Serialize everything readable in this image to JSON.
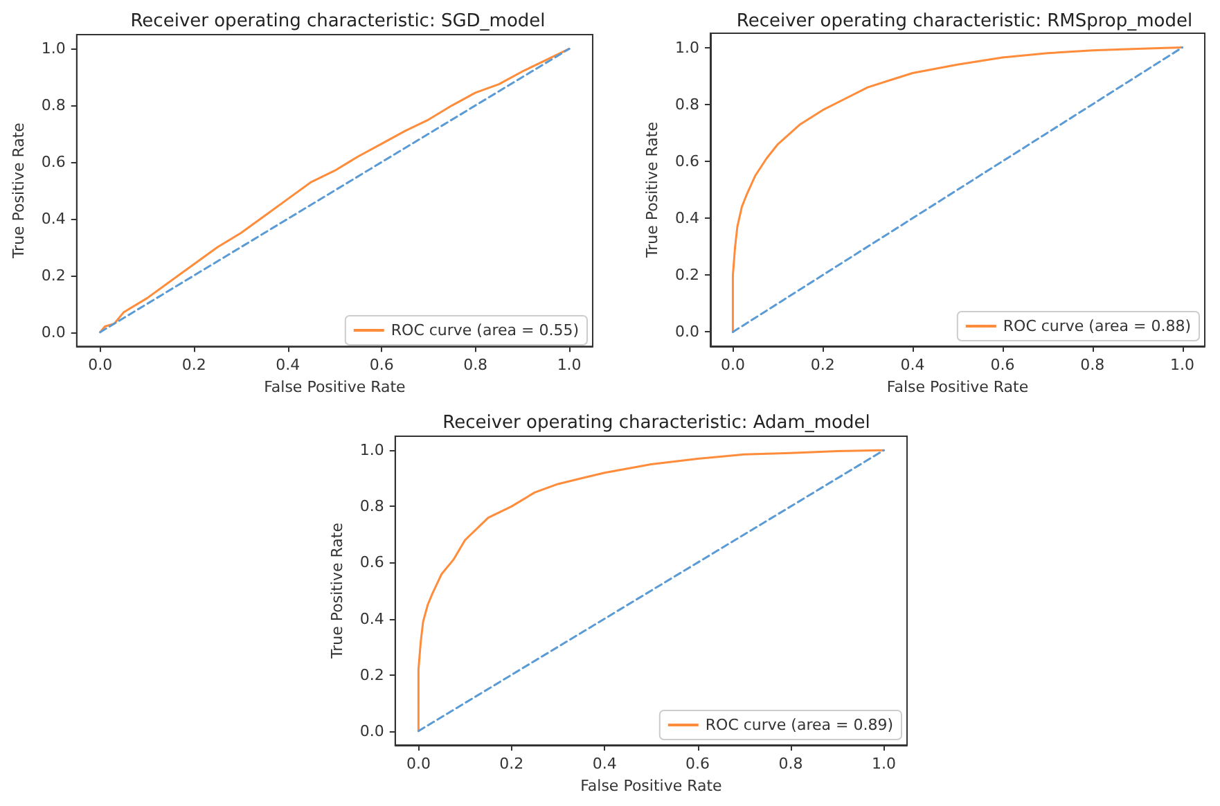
{
  "chart_data": [
    {
      "type": "line",
      "title": "Receiver operating characteristic: SGD_model",
      "xlabel": "False Positive Rate",
      "ylabel": "True Positive Rate",
      "xlim": [
        -0.05,
        1.05
      ],
      "ylim": [
        -0.05,
        1.05
      ],
      "xticks": [
        {
          "value": 0,
          "label": "0.0"
        },
        {
          "value": 0.2,
          "label": "0.2"
        },
        {
          "value": 0.4,
          "label": "0.4"
        },
        {
          "value": 0.6,
          "label": "0.6"
        },
        {
          "value": 0.8,
          "label": "0.8"
        },
        {
          "value": 1,
          "label": "1.0"
        }
      ],
      "yticks": [
        {
          "value": 0,
          "label": "0.0"
        },
        {
          "value": 0.2,
          "label": "0.2"
        },
        {
          "value": 0.4,
          "label": "0.4"
        },
        {
          "value": 0.6,
          "label": "0.6"
        },
        {
          "value": 0.8,
          "label": "0.8"
        },
        {
          "value": 1,
          "label": "1.0"
        }
      ],
      "grid": false,
      "legend": "bottom right",
      "marker": "none",
      "series": [
        {
          "name": "ROC curve (area = 0.55)",
          "color": "#ff8c3a",
          "line_style": "solid",
          "x": [
            0,
            0.01,
            0.03,
            0.05,
            0.1,
            0.15,
            0.2,
            0.25,
            0.3,
            0.35,
            0.4,
            0.45,
            0.5,
            0.55,
            0.6,
            0.65,
            0.7,
            0.75,
            0.8,
            0.85,
            0.9,
            0.95,
            1
          ],
          "values": [
            0,
            0.02,
            0.03,
            0.07,
            0.12,
            0.18,
            0.24,
            0.3,
            0.35,
            0.41,
            0.47,
            0.53,
            0.57,
            0.62,
            0.665,
            0.71,
            0.75,
            0.8,
            0.845,
            0.875,
            0.92,
            0.96,
            1
          ]
        },
        {
          "color": "#5b9bd5",
          "line_style": "dashed",
          "x": [
            0,
            1
          ],
          "values": [
            0,
            1
          ]
        }
      ]
    },
    {
      "type": "line",
      "title": "Receiver operating characteristic: RMSprop_model",
      "xlabel": "False Positive Rate",
      "ylabel": "True Positive Rate",
      "xlim": [
        -0.05,
        1.05
      ],
      "ylim": [
        -0.05,
        1.05
      ],
      "xticks": [
        {
          "value": 0,
          "label": "0.0"
        },
        {
          "value": 0.2,
          "label": "0.2"
        },
        {
          "value": 0.4,
          "label": "0.4"
        },
        {
          "value": 0.6,
          "label": "0.6"
        },
        {
          "value": 0.8,
          "label": "0.8"
        },
        {
          "value": 1,
          "label": "1.0"
        }
      ],
      "yticks": [
        {
          "value": 0,
          "label": "0.0"
        },
        {
          "value": 0.2,
          "label": "0.2"
        },
        {
          "value": 0.4,
          "label": "0.4"
        },
        {
          "value": 0.6,
          "label": "0.6"
        },
        {
          "value": 0.8,
          "label": "0.8"
        },
        {
          "value": 1,
          "label": "1.0"
        }
      ],
      "grid": false,
      "legend": "bottom right",
      "marker": "none",
      "series": [
        {
          "name": "ROC curve (area = 0.88)",
          "color": "#ff8c3a",
          "line_style": "solid",
          "x": [
            0,
            0,
            0.005,
            0.01,
            0.02,
            0.03,
            0.05,
            0.075,
            0.1,
            0.15,
            0.2,
            0.25,
            0.3,
            0.35,
            0.4,
            0.5,
            0.6,
            0.7,
            0.8,
            0.9,
            1
          ],
          "values": [
            0,
            0.2,
            0.3,
            0.37,
            0.44,
            0.48,
            0.55,
            0.61,
            0.66,
            0.73,
            0.78,
            0.82,
            0.86,
            0.885,
            0.91,
            0.94,
            0.965,
            0.98,
            0.99,
            0.995,
            1
          ]
        },
        {
          "color": "#5b9bd5",
          "line_style": "dashed",
          "x": [
            0,
            1
          ],
          "values": [
            0,
            1
          ]
        }
      ]
    },
    {
      "type": "line",
      "title": "Receiver operating characteristic: Adam_model",
      "xlabel": "False Positive Rate",
      "ylabel": "True Positive Rate",
      "xlim": [
        -0.05,
        1.05
      ],
      "ylim": [
        -0.05,
        1.05
      ],
      "xticks": [
        {
          "value": 0,
          "label": "0.0"
        },
        {
          "value": 0.2,
          "label": "0.2"
        },
        {
          "value": 0.4,
          "label": "0.4"
        },
        {
          "value": 0.6,
          "label": "0.6"
        },
        {
          "value": 0.8,
          "label": "0.8"
        },
        {
          "value": 1,
          "label": "1.0"
        }
      ],
      "yticks": [
        {
          "value": 0,
          "label": "0.0"
        },
        {
          "value": 0.2,
          "label": "0.2"
        },
        {
          "value": 0.4,
          "label": "0.4"
        },
        {
          "value": 0.6,
          "label": "0.6"
        },
        {
          "value": 0.8,
          "label": "0.8"
        },
        {
          "value": 1,
          "label": "1.0"
        }
      ],
      "grid": false,
      "legend": "bottom right",
      "marker": "none",
      "series": [
        {
          "name": "ROC curve (area = 0.89)",
          "color": "#ff8c3a",
          "line_style": "solid",
          "x": [
            0,
            0,
            0.005,
            0.01,
            0.02,
            0.03,
            0.05,
            0.075,
            0.1,
            0.15,
            0.2,
            0.25,
            0.3,
            0.35,
            0.4,
            0.5,
            0.6,
            0.7,
            0.8,
            0.9,
            1
          ],
          "values": [
            0,
            0.22,
            0.32,
            0.39,
            0.45,
            0.49,
            0.56,
            0.61,
            0.68,
            0.76,
            0.8,
            0.85,
            0.88,
            0.9,
            0.92,
            0.95,
            0.97,
            0.985,
            0.99,
            0.997,
            1
          ]
        },
        {
          "color": "#5b9bd5",
          "line_style": "dashed",
          "x": [
            0,
            1
          ],
          "values": [
            0,
            1
          ]
        }
      ]
    }
  ]
}
